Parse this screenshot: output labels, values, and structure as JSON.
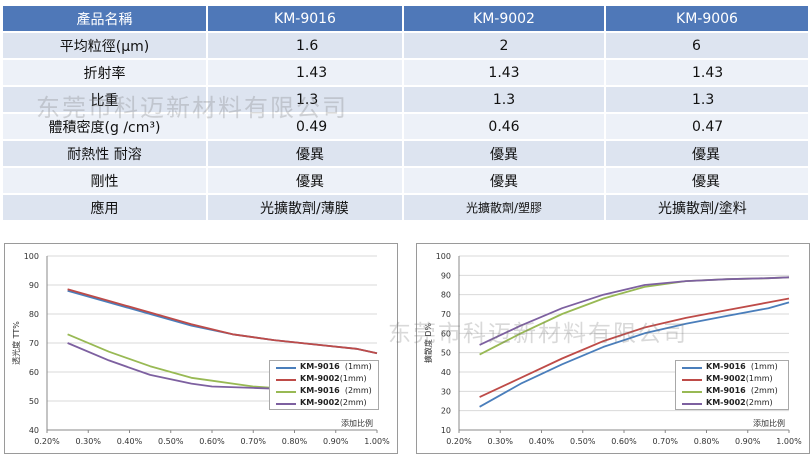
{
  "table": {
    "headers": [
      "產品名稱",
      "KM-9016",
      "KM-9002",
      "KM-9006"
    ],
    "rows": [
      [
        "平均粒徑(μm)",
        "1.6",
        "2",
        "6"
      ],
      [
        "折射率",
        "1.43",
        "1.43",
        "1.43"
      ],
      [
        "比重",
        "1.3",
        "1.3",
        "1.3"
      ],
      [
        "體積密度(g /cm³)",
        "0.49",
        "0.46",
        "0.47"
      ],
      [
        "耐熱性 耐溶",
        "優異",
        "優異",
        "優異"
      ],
      [
        "剛性",
        "優異",
        "優異",
        "優異"
      ],
      [
        "應用",
        "光擴散劑/薄膜",
        "光擴散劑/塑膠",
        "光擴散劑/塗料"
      ]
    ]
  },
  "watermarks": [
    "东莞市科迈新材料有限公司",
    "东莞市科迈新材料有限公司"
  ],
  "colors": {
    "header_bg": "#4f78b8",
    "series": [
      "#4a7ebb",
      "#be4b48",
      "#98b954",
      "#7d60a0"
    ]
  },
  "chart_data": [
    {
      "type": "line",
      "ylabel": "透光度 TT%",
      "xlabel": "添加比例",
      "x_ticks": [
        "0.20%",
        "0.30%",
        "0.40%",
        "0.50%",
        "0.60%",
        "0.70%",
        "0.80%",
        "0.90%",
        "1.00%"
      ],
      "y_ticks": [
        "40",
        "50",
        "60",
        "70",
        "80",
        "90",
        "100"
      ],
      "xlim": [
        0.2,
        1.0
      ],
      "ylim": [
        40,
        100
      ],
      "grid": true,
      "legend_position": "bottom-right",
      "series": [
        {
          "name": "KM-9016",
          "note": "(1mm)",
          "x": [
            0.25,
            0.35,
            0.45,
            0.55,
            0.65,
            0.75,
            0.85,
            0.95,
            1.0
          ],
          "y": [
            88,
            84,
            80,
            76,
            73,
            71,
            69.5,
            68,
            66.5
          ]
        },
        {
          "name": "KM-9002",
          "note": "(1mm)",
          "x": [
            0.25,
            0.35,
            0.45,
            0.55,
            0.65,
            0.75,
            0.85,
            0.95,
            1.0
          ],
          "y": [
            88.5,
            84.5,
            80.5,
            76.5,
            73,
            71,
            69.5,
            68,
            66.5
          ]
        },
        {
          "name": "KM-9016",
          "note": "(2mm)",
          "x": [
            0.25,
            0.35,
            0.45,
            0.55,
            0.6,
            0.7,
            0.8,
            0.9,
            1.0
          ],
          "y": [
            73,
            67,
            62,
            58,
            57,
            55,
            54,
            53.5,
            53.5
          ]
        },
        {
          "name": "KM-9002",
          "note": "(2mm)",
          "x": [
            0.25,
            0.35,
            0.45,
            0.55,
            0.6,
            0.7,
            0.8,
            0.9,
            1.0
          ],
          "y": [
            70,
            64,
            59,
            56,
            55,
            54.5,
            54,
            53.5,
            53.5
          ]
        }
      ]
    },
    {
      "type": "line",
      "ylabel": "擴散度 D%",
      "xlabel": "添加比例",
      "x_ticks": [
        "0.20%",
        "0.30%",
        "0.40%",
        "0.50%",
        "0.60%",
        "0.70%",
        "0.80%",
        "0.90%",
        "1.00%"
      ],
      "y_ticks": [
        "10",
        "20",
        "30",
        "40",
        "50",
        "60",
        "70",
        "80",
        "90",
        "100"
      ],
      "xlim": [
        0.2,
        1.0
      ],
      "ylim": [
        10,
        100
      ],
      "grid": true,
      "legend_position": "bottom-right",
      "series": [
        {
          "name": "KM-9016",
          "note": "(1mm)",
          "x": [
            0.25,
            0.35,
            0.45,
            0.55,
            0.65,
            0.75,
            0.85,
            0.95,
            1.0
          ],
          "y": [
            22,
            34,
            44,
            53,
            60,
            65,
            69,
            73,
            76
          ]
        },
        {
          "name": "KM-9002",
          "note": "(1mm)",
          "x": [
            0.25,
            0.35,
            0.45,
            0.55,
            0.65,
            0.75,
            0.85,
            0.95,
            1.0
          ],
          "y": [
            27,
            37,
            47,
            56,
            63,
            68,
            72,
            76,
            78
          ]
        },
        {
          "name": "KM-9016",
          "note": "(2mm)",
          "x": [
            0.25,
            0.35,
            0.45,
            0.55,
            0.65,
            0.75,
            0.85,
            0.95,
            1.0
          ],
          "y": [
            49,
            60,
            70,
            78,
            84,
            87,
            88,
            88.5,
            89
          ]
        },
        {
          "name": "KM-9002",
          "note": "(2mm)",
          "x": [
            0.25,
            0.35,
            0.45,
            0.55,
            0.65,
            0.75,
            0.85,
            0.95,
            1.0
          ],
          "y": [
            54,
            64,
            73,
            80,
            85,
            87,
            88,
            88.5,
            89
          ]
        }
      ]
    }
  ]
}
